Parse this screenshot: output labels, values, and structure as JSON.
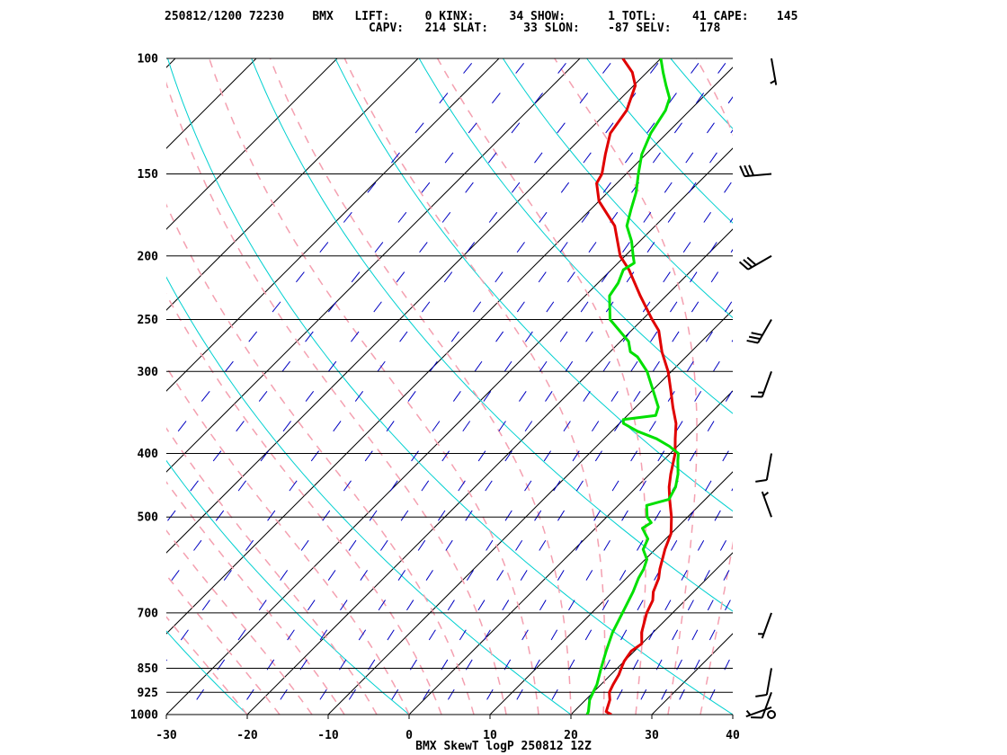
{
  "header": {
    "line1": "250812/1200 72230    BMX   LIFT:     0 KINX:     34 SHOW:      1 TOTL:     41 CAPE:    145",
    "line2": "                             CAPV:   214 SLAT:     33 SLON:    -87 SELV:    178"
  },
  "footer": {
    "title": "BMX SkewT logP 250812 12Z"
  },
  "colors": {
    "temperature": "#e00000",
    "dewpoint": "#00e000",
    "isotherm": "#000000",
    "dry_adiabat": "#00d0d0",
    "moist_adiabat": "#f4a0b0",
    "mixing_ratio": "#0000c0"
  },
  "chart_data": {
    "type": "line",
    "subtype": "skew-T log-P",
    "xlabel": "",
    "ylabel": "",
    "xlim": [
      -30,
      40
    ],
    "ylim": [
      1000,
      100
    ],
    "y_scale": "log",
    "grid": true,
    "x_ticks": [
      -30,
      -20,
      -10,
      0,
      10,
      20,
      30,
      40
    ],
    "x_tick_labels": [
      "-30",
      "-20",
      "-10",
      "0",
      "10",
      "20",
      "30",
      "40"
    ],
    "pressure_levels": [
      100,
      150,
      200,
      250,
      300,
      400,
      500,
      700,
      850,
      925,
      1000
    ],
    "pressure_labels": [
      "100",
      "150",
      "200",
      "250",
      "300",
      "400",
      "500",
      "700",
      "850",
      "925",
      "1000"
    ],
    "series": [
      {
        "key": "temperature",
        "p": [
          1000,
          990,
          950,
          925,
          900,
          870,
          850,
          830,
          800,
          780,
          750,
          700,
          670,
          650,
          620,
          600,
          560,
          530,
          500,
          470,
          450,
          430,
          400,
          380,
          360,
          340,
          320,
          300,
          280,
          260,
          250,
          230,
          210,
          200,
          180,
          165,
          155,
          150,
          140,
          130,
          120,
          110,
          105,
          100
        ],
        "t": [
          25.0,
          24.0,
          23.0,
          22.0,
          21.5,
          21.0,
          20.5,
          20.0,
          19.6,
          20.0,
          18.6,
          16.8,
          16.0,
          15.0,
          14.0,
          13.0,
          11.2,
          10.0,
          8.0,
          5.6,
          4.0,
          2.6,
          0.6,
          -1.2,
          -3.0,
          -5.4,
          -7.8,
          -10.4,
          -13.6,
          -16.6,
          -18.8,
          -23.2,
          -27.8,
          -30.6,
          -35.0,
          -40.0,
          -42.5,
          -43.0,
          -45.0,
          -47.0,
          -47.8,
          -49.8,
          -51.8,
          -54.7
        ]
      },
      {
        "key": "dewpoint",
        "p": [
          1000,
          990,
          950,
          925,
          900,
          850,
          800,
          750,
          700,
          650,
          620,
          600,
          580,
          560,
          540,
          520,
          510,
          500,
          480,
          470,
          450,
          430,
          410,
          400,
          390,
          380,
          370,
          360,
          355,
          350,
          340,
          320,
          300,
          285,
          280,
          270,
          250,
          230,
          220,
          210,
          205,
          200,
          190,
          180,
          170,
          160,
          150,
          140,
          130,
          120,
          115,
          110,
          105,
          100
        ],
        "t": [
          22.0,
          21.8,
          20.5,
          20.0,
          19.5,
          18.0,
          16.5,
          15.0,
          13.8,
          12.5,
          11.5,
          11.0,
          10.2,
          8.5,
          7.8,
          5.8,
          6.2,
          5.0,
          3.5,
          5.5,
          4.8,
          3.5,
          1.8,
          1.0,
          -1.0,
          -3.5,
          -6.8,
          -9.5,
          -10.0,
          -6.5,
          -7.2,
          -10.0,
          -13.0,
          -16.0,
          -17.5,
          -19.0,
          -24.0,
          -27.0,
          -27.5,
          -28.5,
          -28.0,
          -29.0,
          -31.0,
          -33.5,
          -35.0,
          -36.5,
          -38.5,
          -40.5,
          -42.0,
          -43.0,
          -44.0,
          -46.0,
          -48.0,
          -50.0
        ]
      }
    ],
    "wind_barbs": [
      {
        "p": 1000,
        "dir": 90,
        "speed_kt": 0,
        "calm": true
      },
      {
        "p": 975,
        "dir": 250,
        "speed_kt": 5
      },
      {
        "p": 925,
        "dir": 200,
        "speed_kt": 10
      },
      {
        "p": 850,
        "dir": 190,
        "speed_kt": 10
      },
      {
        "p": 700,
        "dir": 200,
        "speed_kt": 5
      },
      {
        "p": 500,
        "dir": 340,
        "speed_kt": 5
      },
      {
        "p": 400,
        "dir": 190,
        "speed_kt": 10
      },
      {
        "p": 300,
        "dir": 200,
        "speed_kt": 15
      },
      {
        "p": 250,
        "dir": 210,
        "speed_kt": 30
      },
      {
        "p": 200,
        "dir": 240,
        "speed_kt": 30
      },
      {
        "p": 150,
        "dir": 265,
        "speed_kt": 30
      },
      {
        "p": 100,
        "dir": 170,
        "speed_kt": 5
      }
    ]
  }
}
